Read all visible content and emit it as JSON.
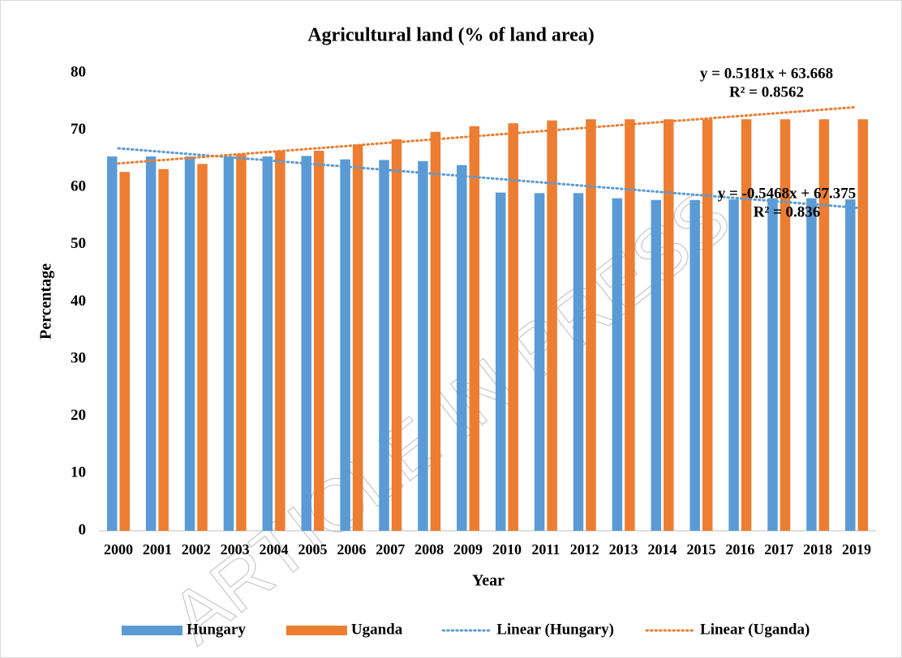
{
  "chart_data": {
    "type": "bar",
    "title": "Agricultural land (% of land area)",
    "x_label": "Year",
    "y_label": "Percentage",
    "watermark": "ARTICLE IN PRESS",
    "categories": [
      "2000",
      "2001",
      "2002",
      "2003",
      "2004",
      "2005",
      "2006",
      "2007",
      "2008",
      "2009",
      "2010",
      "2011",
      "2012",
      "2013",
      "2014",
      "2015",
      "2016",
      "2017",
      "2018",
      "2019"
    ],
    "series": [
      {
        "name": "Hungary",
        "color": "#5b9bd5",
        "values": [
          65.4,
          65.4,
          65.4,
          65.4,
          65.4,
          65.5,
          64.9,
          64.8,
          64.6,
          63.9,
          59.1,
          59.0,
          59.0,
          58.1,
          57.8,
          57.8,
          57.9,
          58.1,
          58.1,
          57.9
        ]
      },
      {
        "name": "Uganda",
        "color": "#ed7d31",
        "values": [
          62.7,
          63.2,
          64.1,
          65.8,
          66.4,
          66.4,
          67.5,
          68.4,
          69.7,
          70.7,
          71.2,
          71.7,
          71.9,
          71.9,
          71.9,
          71.9,
          71.9,
          71.9,
          71.9,
          71.9
        ]
      }
    ],
    "trendlines": [
      {
        "name": "Linear (Hungary)",
        "color": "#5b9bd5",
        "slope": -0.5468,
        "intercept": 67.375,
        "equation": "y = -0.5468x + 67.375",
        "r2": 0.836,
        "r2_label": "R² = 0.836"
      },
      {
        "name": "Linear (Uganda)",
        "color": "#ed7d31",
        "slope": 0.5181,
        "intercept": 63.668,
        "equation": "y = 0.5181x + 63.668",
        "r2": 0.8562,
        "r2_label": "R² = 0.8562"
      }
    ],
    "ylim": [
      0,
      80
    ],
    "yticks": [
      0,
      10,
      20,
      30,
      40,
      50,
      60,
      70,
      80
    ],
    "grid": false,
    "legend": "bottom"
  }
}
